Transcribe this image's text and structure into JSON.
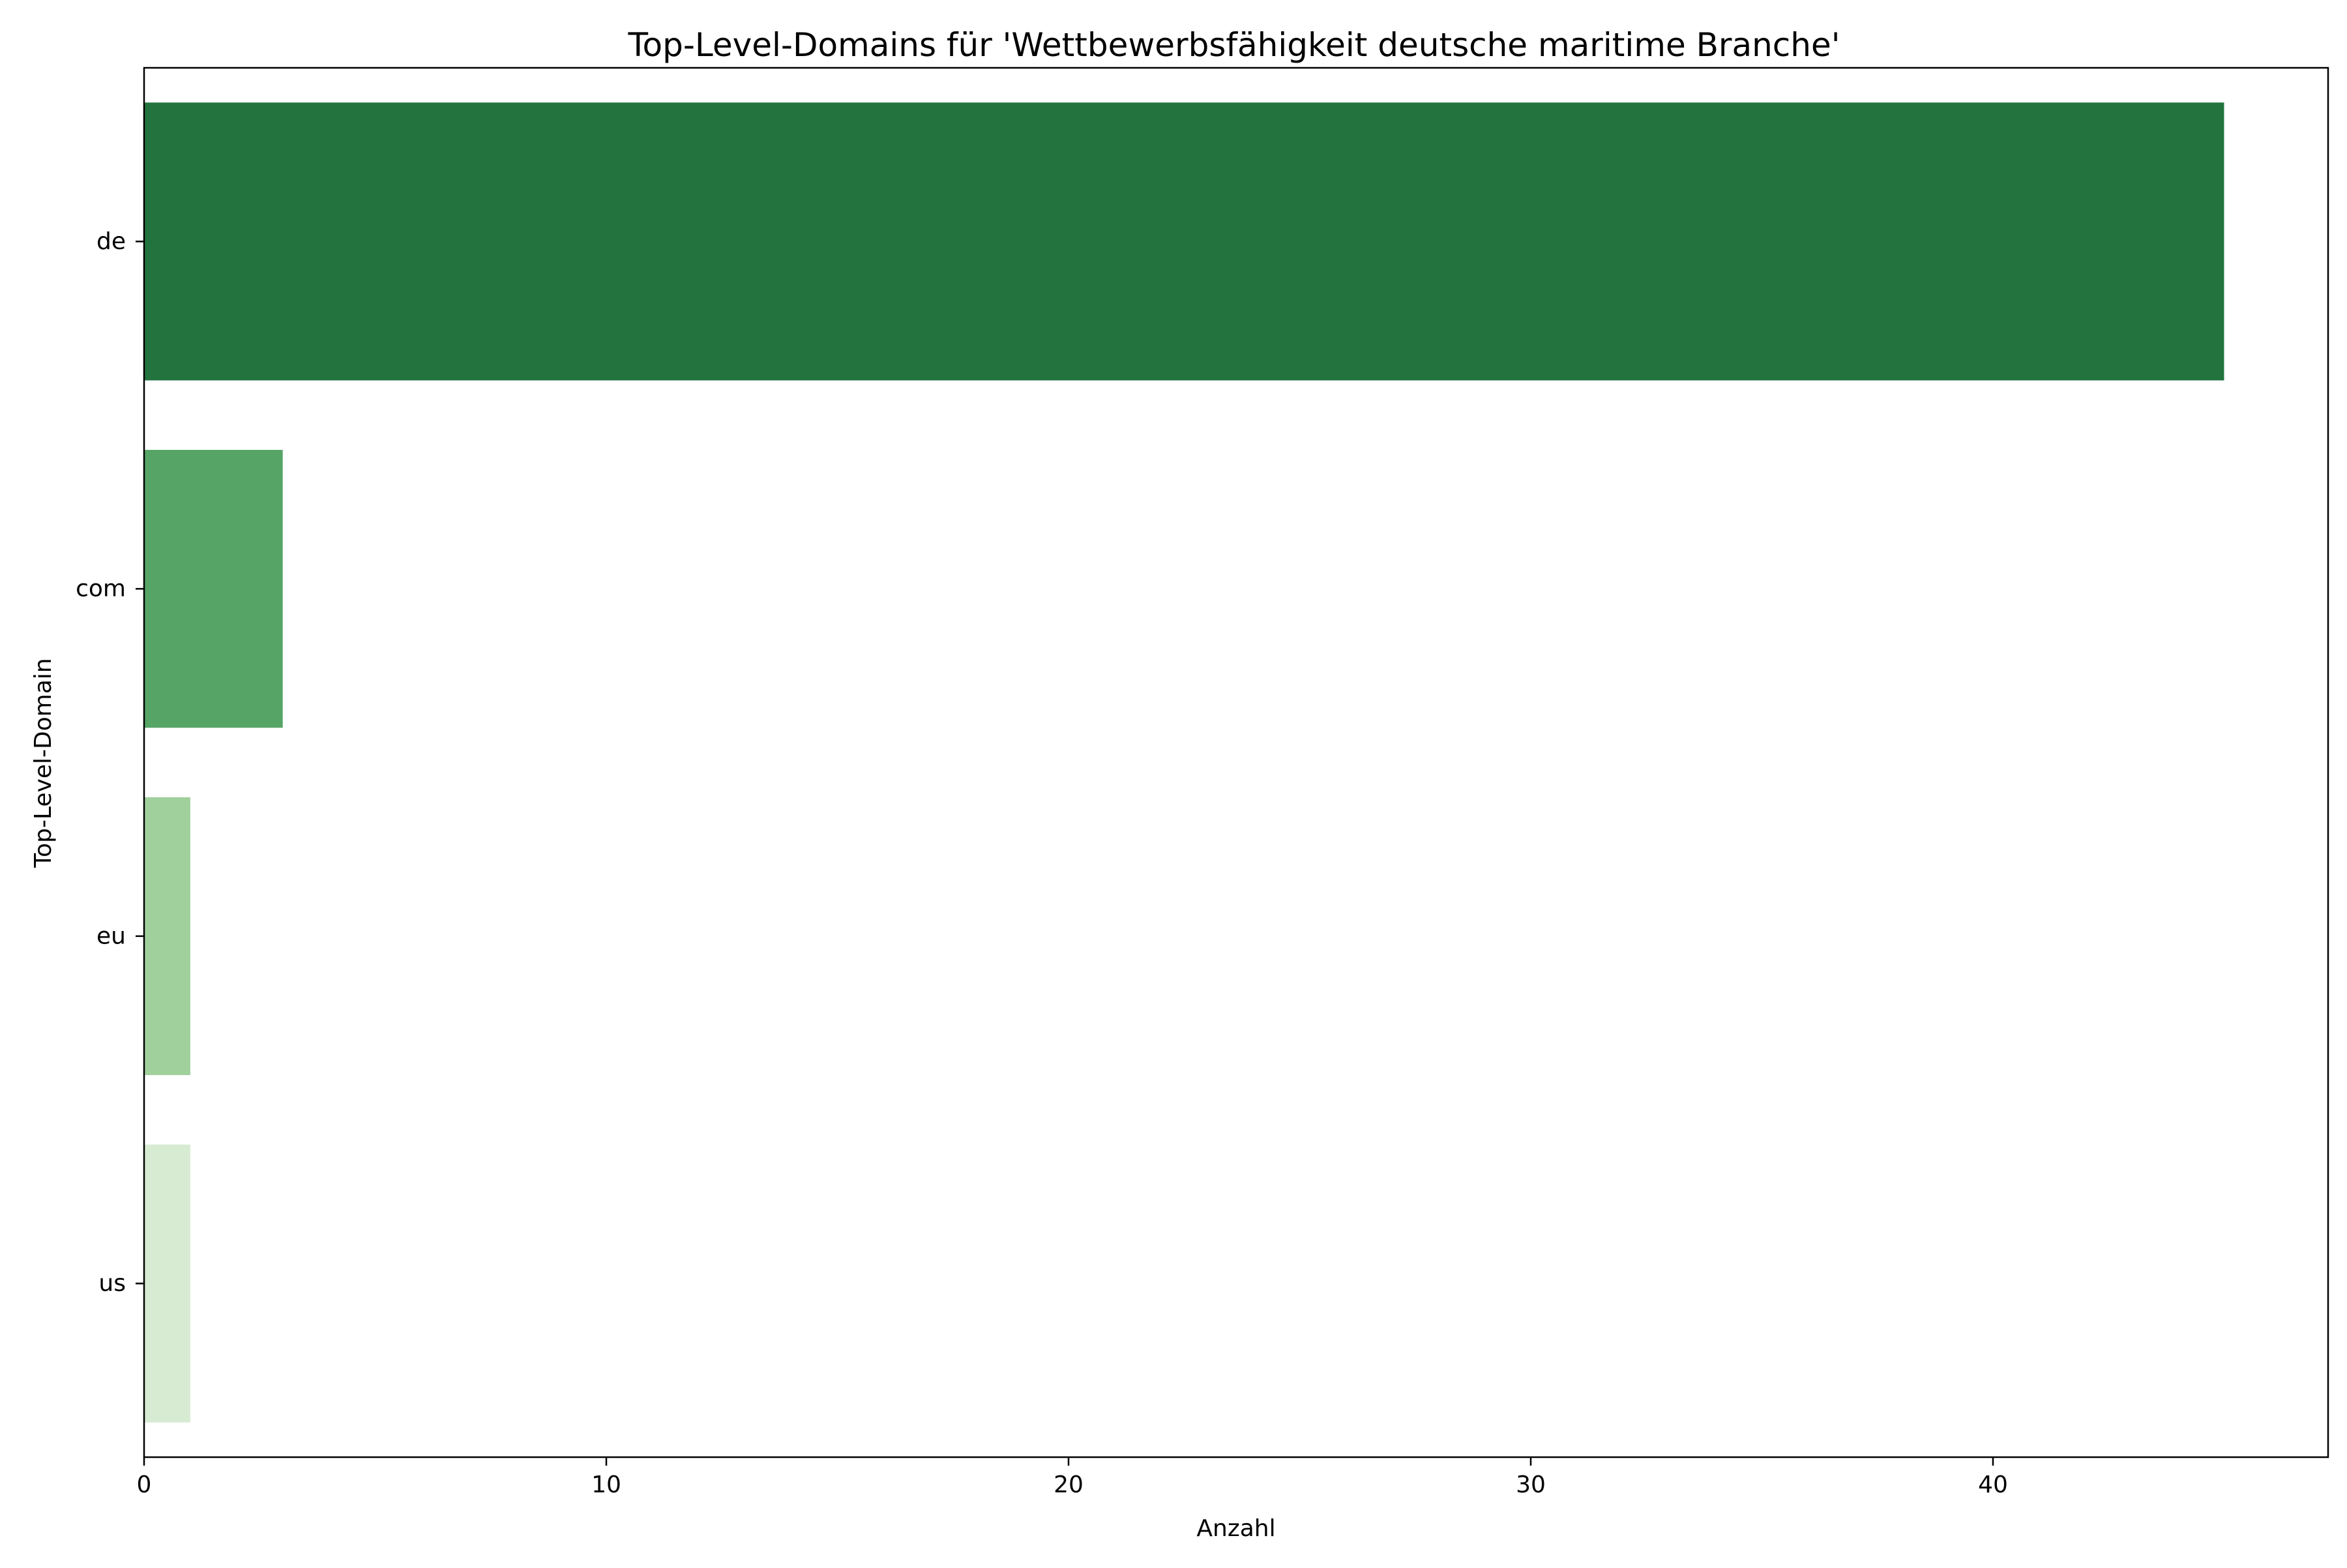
{
  "chart_data": {
    "type": "bar",
    "orientation": "horizontal",
    "title": "Top-Level-Domains für 'Wettbewerbsfähigkeit deutsche maritime Branche'",
    "xlabel": "Anzahl",
    "ylabel": "Top-Level-Domain",
    "categories": [
      "de",
      "com",
      "eu",
      "us"
    ],
    "values": [
      45,
      3,
      1,
      1
    ],
    "colors": [
      "#23733f",
      "#56a466",
      "#a0d09c",
      "#d6ebd2"
    ],
    "xlim": [
      0,
      47.25
    ],
    "xticks": [
      0,
      10,
      20,
      30,
      40
    ],
    "grid": false,
    "legend": "none"
  }
}
